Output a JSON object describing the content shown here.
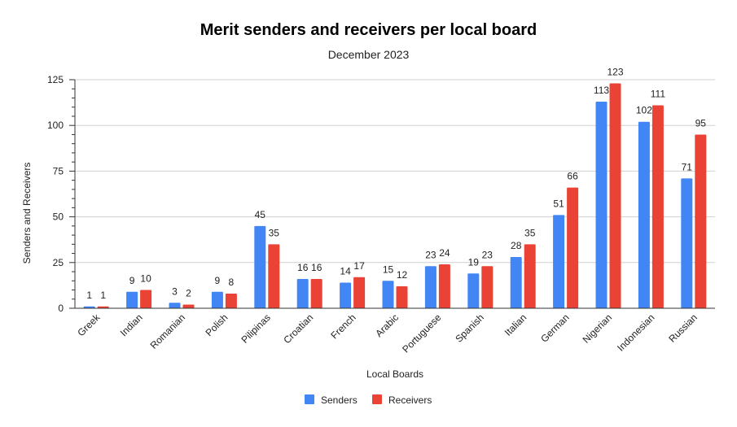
{
  "chart_data": {
    "type": "bar",
    "title": "Merit senders and receivers per local board",
    "subtitle": "December 2023",
    "xlabel": "Local Boards",
    "ylabel": "Senders and Receivers",
    "ylim": [
      0,
      125
    ],
    "yticks": [
      0,
      25,
      50,
      75,
      100,
      125
    ],
    "grid": true,
    "legend_position": "bottom",
    "categories": [
      "Greek",
      "Indian",
      "Romanian",
      "Polish",
      "Pilipinas",
      "Croatian",
      "French",
      "Arabic",
      "Portuguese",
      "Spanish",
      "Italian",
      "German",
      "Nigerian",
      "Indonesian",
      "Russian"
    ],
    "series": [
      {
        "name": "Senders",
        "color": "#4285f4",
        "values": [
          1,
          9,
          3,
          9,
          45,
          16,
          14,
          15,
          23,
          19,
          28,
          51,
          113,
          102,
          71
        ]
      },
      {
        "name": "Receivers",
        "color": "#ea4335",
        "values": [
          1,
          10,
          2,
          8,
          35,
          16,
          17,
          12,
          24,
          23,
          35,
          66,
          123,
          111,
          95
        ]
      }
    ]
  }
}
